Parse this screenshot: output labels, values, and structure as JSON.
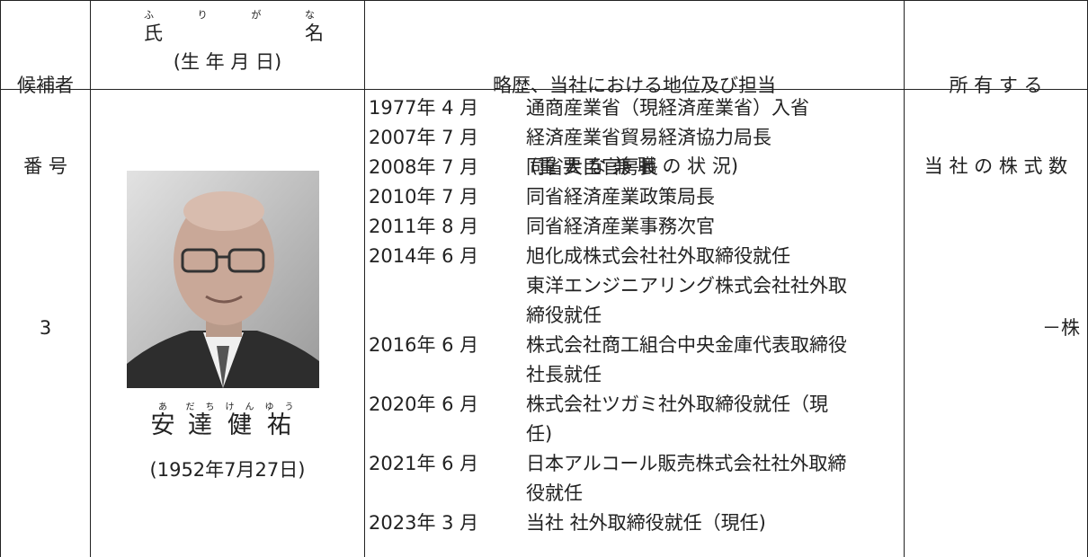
{
  "header": {
    "candidate_number": [
      "候補者",
      "番 号"
    ],
    "name_furigana": [
      "ふ",
      "り",
      "が",
      "な"
    ],
    "name": [
      "氏",
      "名"
    ],
    "birth_date": "(生 年 月 日)",
    "career": [
      "略歴、当社における地位及び担当",
      "(重 要 な 兼 職 の 状 況)"
    ],
    "shares": [
      "所 有 す る",
      "当 社 の 株 式 数"
    ]
  },
  "row": {
    "number": "3",
    "name": [
      {
        "kanji": "安",
        "ruby": "あ"
      },
      {
        "kanji": "達",
        "ruby": "だち"
      },
      {
        "kanji": "健",
        "ruby": "けん"
      },
      {
        "kanji": "祐",
        "ruby": "ゆう"
      }
    ],
    "birth_date": "(1952年7月27日)",
    "history": [
      {
        "date": "1977年 4 月",
        "lines": [
          "通商産業省（現経済産業省）入省"
        ]
      },
      {
        "date": "2007年 7 月",
        "lines": [
          "経済産業省貿易経済協力局長"
        ]
      },
      {
        "date": "2008年 7 月",
        "lines": [
          "同省大臣官房長"
        ]
      },
      {
        "date": "2010年 7 月",
        "lines": [
          "同省経済産業政策局長"
        ]
      },
      {
        "date": "2011年 8 月",
        "lines": [
          "同省経済産業事務次官"
        ]
      },
      {
        "date": "2014年 6 月",
        "lines": [
          "旭化成株式会社社外取締役就任",
          "東洋エンジニアリング株式会社社外取",
          "締役就任"
        ]
      },
      {
        "date": "2016年 6 月",
        "lines": [
          "株式会社商工組合中央金庫代表取締役",
          "社長就任"
        ]
      },
      {
        "date": "2020年 6 月",
        "lines": [
          "株式会社ツガミ社外取締役就任（現",
          "任)"
        ]
      },
      {
        "date": "2021年 6 月",
        "lines": [
          "日本アルコール販売株式会社社外取締",
          "役就任"
        ]
      },
      {
        "date": "2023年 3 月",
        "lines": [
          "当社 社外取締役就任（現任)"
        ]
      }
    ],
    "shares": "－株"
  }
}
